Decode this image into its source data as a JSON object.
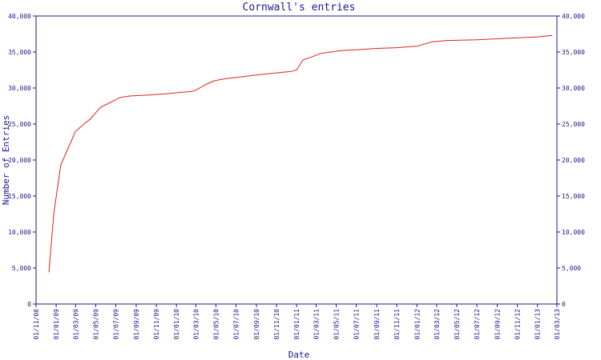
{
  "chart_data": {
    "type": "line",
    "title": "Cornwall's entries",
    "xlabel": "Date",
    "ylabel": "Number of Entries",
    "ylim": [
      0,
      40000
    ],
    "y_ticks": [
      0,
      5000,
      10000,
      15000,
      20000,
      25000,
      30000,
      35000,
      40000
    ],
    "y_tick_labels": [
      "0",
      "5,000",
      "10,000",
      "15,000",
      "20,000",
      "25,000",
      "30,000",
      "35,000",
      "40,000"
    ],
    "x_range": [
      "2008-11-01",
      "2013-03-01"
    ],
    "x_ticks": [
      "2008-11-01",
      "2009-01-01",
      "2009-03-01",
      "2009-05-01",
      "2009-07-01",
      "2009-09-01",
      "2009-11-01",
      "2010-01-01",
      "2010-03-01",
      "2010-05-01",
      "2010-07-01",
      "2010-09-01",
      "2010-11-01",
      "2011-01-01",
      "2011-03-01",
      "2011-05-01",
      "2011-07-01",
      "2011-09-01",
      "2011-11-01",
      "2012-01-01",
      "2012-03-01",
      "2012-05-01",
      "2012-07-01",
      "2012-09-01",
      "2012-11-01",
      "2013-01-01",
      "2013-03-01"
    ],
    "x_tick_labels": [
      "01/11/08",
      "01/01/09",
      "01/03/09",
      "01/05/09",
      "01/07/09",
      "01/09/09",
      "01/11/09",
      "01/01/10",
      "01/03/10",
      "01/05/10",
      "01/07/10",
      "01/09/10",
      "01/11/10",
      "01/01/11",
      "01/03/11",
      "01/05/11",
      "01/07/11",
      "01/09/11",
      "01/11/11",
      "01/01/12",
      "01/03/12",
      "01/05/12",
      "01/07/12",
      "01/09/12",
      "01/11/12",
      "01/01/13",
      "01/03/13"
    ],
    "grid": false,
    "color": "#e02020",
    "series": [
      {
        "x": [
          "2008-12-10",
          "2008-12-25",
          "2009-01-15",
          "2009-02-05",
          "2009-03-01",
          "2009-04-01",
          "2009-04-15",
          "2009-05-15",
          "2009-06-15",
          "2009-07-15",
          "2009-08-15",
          "2009-10-01",
          "2009-12-01",
          "2010-01-15",
          "2010-02-15",
          "2010-03-01",
          "2010-04-01",
          "2010-04-25",
          "2010-06-01",
          "2010-09-01",
          "2010-12-15",
          "2011-01-01",
          "2011-01-20",
          "2011-02-15",
          "2011-03-15",
          "2011-04-15",
          "2011-05-15",
          "2011-07-01",
          "2011-09-01",
          "2011-11-01",
          "2012-01-01",
          "2012-02-15",
          "2012-04-01",
          "2012-07-01",
          "2012-10-01",
          "2013-01-01",
          "2013-02-15"
        ],
        "y": [
          4400,
          12600,
          19300,
          21500,
          24000,
          25200,
          25700,
          27300,
          28000,
          28700,
          28900,
          29000,
          29200,
          29400,
          29500,
          29700,
          30500,
          31000,
          31300,
          31800,
          32300,
          32500,
          33900,
          34300,
          34800,
          35000,
          35200,
          35300,
          35500,
          35600,
          35800,
          36400,
          36600,
          36700,
          36900,
          37100,
          37300
        ]
      }
    ]
  }
}
